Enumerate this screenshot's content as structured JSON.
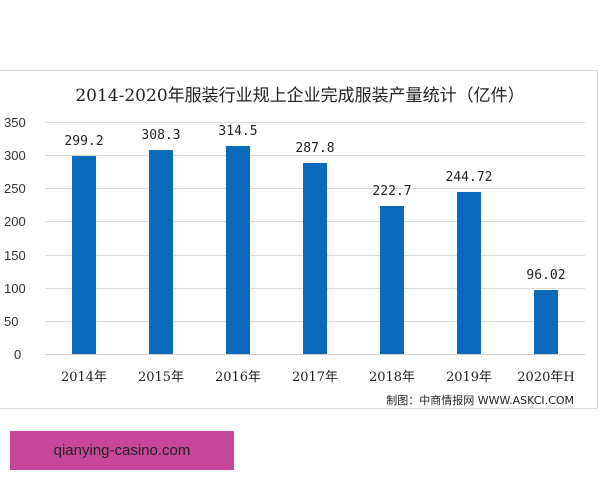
{
  "chart_data": {
    "type": "bar",
    "title": "2014-2020年服装行业规上企业完成服装产量统计（亿件）",
    "categories": [
      "2014年",
      "2015年",
      "2016年",
      "2017年",
      "2018年",
      "2019年",
      "2020年H"
    ],
    "values": [
      299.2,
      308.3,
      314.5,
      287.8,
      222.7,
      244.72,
      96.02
    ],
    "value_labels": [
      "299.2",
      "308.3",
      "314.5",
      "287.8",
      "222.7",
      "244.72",
      "96.02"
    ],
    "xlabel": "",
    "ylabel": "",
    "ylim": [
      0,
      350
    ],
    "yticks": [
      "350",
      "300",
      "250",
      "200",
      "150",
      "100",
      "50",
      "0"
    ],
    "grid": true,
    "legend": null,
    "bar_color": "#0a6bbd"
  },
  "source_note": "制图：中商情报网 WWW.ASKCI.COM",
  "banner_text": "qianying-casino.com"
}
